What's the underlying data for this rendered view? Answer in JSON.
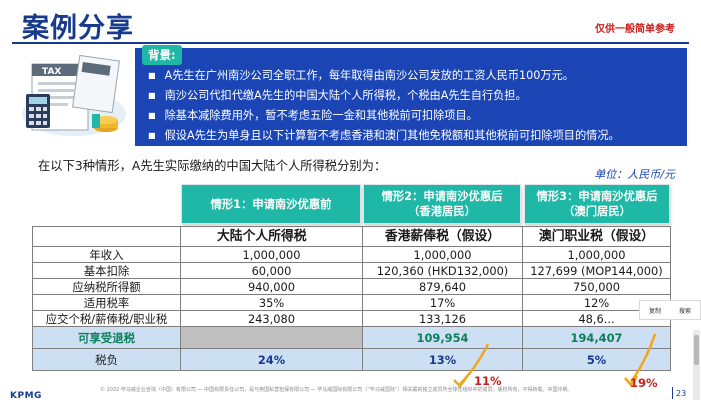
{
  "header": {
    "title": "案例分享",
    "disclaimer": "仅供一般简单参考"
  },
  "background": {
    "tag": "背景:",
    "items": [
      "A先生在广州南沙公司全职工作，每年取得由南沙公司发放的工资人民币100万元。",
      "南沙公司代扣代缴A先生的中国大陆个人所得税，个税由A先生自行负担。",
      "除基本减除费用外，暂不考虑五险一金和其他税前可扣除项目。",
      "假设A先生为单身且以下计算暂不考虑香港和澳门其他免税额和其他税前可扣除项目的情况。"
    ],
    "illustration_text": "TAX"
  },
  "intro": "在以下3种情形，A先生实际缴纳的中国大陆个人所得税分别为：",
  "unit": "单位：人民币/元",
  "scenarios": [
    {
      "line1": "情形1：申请南沙优惠前",
      "line2": ""
    },
    {
      "line1": "情形2：申请南沙优惠后",
      "line2": "（香港居民）"
    },
    {
      "line1": "情形3：申请南沙优惠后",
      "line2": "（澳门居民）"
    }
  ],
  "table": {
    "headers": [
      "",
      "大陆个人所得税",
      "香港薪俸税（假设）",
      "澳门职业税（假设）"
    ],
    "rows": [
      {
        "label": "年收入",
        "values": [
          "1,000,000",
          "1,000,000",
          "1,000,000"
        ]
      },
      {
        "label": "基本扣除",
        "values": [
          "60,000",
          "120,360 (HKD132,000)",
          "127,699 (MOP144,000)"
        ]
      },
      {
        "label": "应纳税所得额",
        "values": [
          "940,000",
          "879,640",
          "750,000"
        ]
      },
      {
        "label": "适用税率",
        "values": [
          "35%",
          "17%",
          "12%"
        ]
      },
      {
        "label": "应交个税/薪俸税/职业税",
        "values": [
          "243,080",
          "133,126",
          "48,6..."
        ]
      }
    ],
    "refund": {
      "label": "可享受退税",
      "values": [
        "",
        "109,954",
        "194,407"
      ]
    },
    "burden": {
      "label": "税负",
      "values": [
        "24%",
        "13%",
        "5%"
      ]
    }
  },
  "annotations": {
    "hk_rate": "11%",
    "mo_rate": "19%"
  },
  "context_menu": [
    "复制",
    "搜索"
  ],
  "footer": {
    "copyright": "© 2022 毕马威企业咨询（中国）有限公司 — 中国有限责任公司，是与英国私营担保有限公司 — 毕马威国际有限公司（“毕马威国际”）相关联的独立成员所全球性组织中的成员。版权所有，不得转载。中国印刷。",
    "logo": "KPMG",
    "page": "23"
  },
  "colors": {
    "brand_blue": "#173a8c",
    "panel_blue": "#1b45b5",
    "teal": "#1fb7a6",
    "light_blue": "#cde0f3",
    "red": "#c81e1e",
    "green": "#0d7e5a"
  }
}
